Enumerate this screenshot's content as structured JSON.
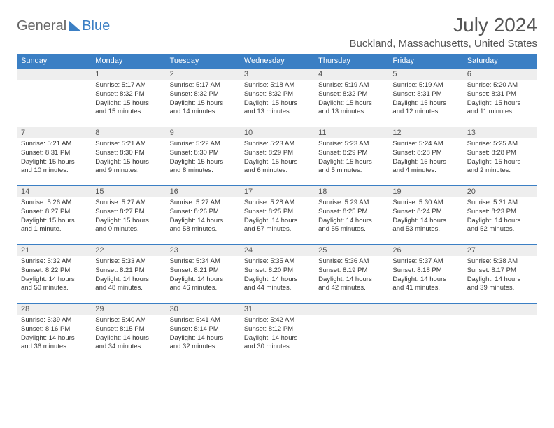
{
  "logo": {
    "general": "General",
    "blue": "Blue"
  },
  "title": "July 2024",
  "location": "Buckland, Massachusetts, United States",
  "colors": {
    "header_bg": "#3b7fc4",
    "header_fg": "#ffffff",
    "daynum_bg": "#eeeeee",
    "text": "#333333",
    "rule": "#3b7fc4"
  },
  "daysOfWeek": [
    "Sunday",
    "Monday",
    "Tuesday",
    "Wednesday",
    "Thursday",
    "Friday",
    "Saturday"
  ],
  "weeks": [
    [
      null,
      {
        "n": "1",
        "sr": "5:17 AM",
        "ss": "8:32 PM",
        "dl": "15 hours and 15 minutes."
      },
      {
        "n": "2",
        "sr": "5:17 AM",
        "ss": "8:32 PM",
        "dl": "15 hours and 14 minutes."
      },
      {
        "n": "3",
        "sr": "5:18 AM",
        "ss": "8:32 PM",
        "dl": "15 hours and 13 minutes."
      },
      {
        "n": "4",
        "sr": "5:19 AM",
        "ss": "8:32 PM",
        "dl": "15 hours and 13 minutes."
      },
      {
        "n": "5",
        "sr": "5:19 AM",
        "ss": "8:31 PM",
        "dl": "15 hours and 12 minutes."
      },
      {
        "n": "6",
        "sr": "5:20 AM",
        "ss": "8:31 PM",
        "dl": "15 hours and 11 minutes."
      }
    ],
    [
      {
        "n": "7",
        "sr": "5:21 AM",
        "ss": "8:31 PM",
        "dl": "15 hours and 10 minutes."
      },
      {
        "n": "8",
        "sr": "5:21 AM",
        "ss": "8:30 PM",
        "dl": "15 hours and 9 minutes."
      },
      {
        "n": "9",
        "sr": "5:22 AM",
        "ss": "8:30 PM",
        "dl": "15 hours and 8 minutes."
      },
      {
        "n": "10",
        "sr": "5:23 AM",
        "ss": "8:29 PM",
        "dl": "15 hours and 6 minutes."
      },
      {
        "n": "11",
        "sr": "5:23 AM",
        "ss": "8:29 PM",
        "dl": "15 hours and 5 minutes."
      },
      {
        "n": "12",
        "sr": "5:24 AM",
        "ss": "8:28 PM",
        "dl": "15 hours and 4 minutes."
      },
      {
        "n": "13",
        "sr": "5:25 AM",
        "ss": "8:28 PM",
        "dl": "15 hours and 2 minutes."
      }
    ],
    [
      {
        "n": "14",
        "sr": "5:26 AM",
        "ss": "8:27 PM",
        "dl": "15 hours and 1 minute."
      },
      {
        "n": "15",
        "sr": "5:27 AM",
        "ss": "8:27 PM",
        "dl": "15 hours and 0 minutes."
      },
      {
        "n": "16",
        "sr": "5:27 AM",
        "ss": "8:26 PM",
        "dl": "14 hours and 58 minutes."
      },
      {
        "n": "17",
        "sr": "5:28 AM",
        "ss": "8:25 PM",
        "dl": "14 hours and 57 minutes."
      },
      {
        "n": "18",
        "sr": "5:29 AM",
        "ss": "8:25 PM",
        "dl": "14 hours and 55 minutes."
      },
      {
        "n": "19",
        "sr": "5:30 AM",
        "ss": "8:24 PM",
        "dl": "14 hours and 53 minutes."
      },
      {
        "n": "20",
        "sr": "5:31 AM",
        "ss": "8:23 PM",
        "dl": "14 hours and 52 minutes."
      }
    ],
    [
      {
        "n": "21",
        "sr": "5:32 AM",
        "ss": "8:22 PM",
        "dl": "14 hours and 50 minutes."
      },
      {
        "n": "22",
        "sr": "5:33 AM",
        "ss": "8:21 PM",
        "dl": "14 hours and 48 minutes."
      },
      {
        "n": "23",
        "sr": "5:34 AM",
        "ss": "8:21 PM",
        "dl": "14 hours and 46 minutes."
      },
      {
        "n": "24",
        "sr": "5:35 AM",
        "ss": "8:20 PM",
        "dl": "14 hours and 44 minutes."
      },
      {
        "n": "25",
        "sr": "5:36 AM",
        "ss": "8:19 PM",
        "dl": "14 hours and 42 minutes."
      },
      {
        "n": "26",
        "sr": "5:37 AM",
        "ss": "8:18 PM",
        "dl": "14 hours and 41 minutes."
      },
      {
        "n": "27",
        "sr": "5:38 AM",
        "ss": "8:17 PM",
        "dl": "14 hours and 39 minutes."
      }
    ],
    [
      {
        "n": "28",
        "sr": "5:39 AM",
        "ss": "8:16 PM",
        "dl": "14 hours and 36 minutes."
      },
      {
        "n": "29",
        "sr": "5:40 AM",
        "ss": "8:15 PM",
        "dl": "14 hours and 34 minutes."
      },
      {
        "n": "30",
        "sr": "5:41 AM",
        "ss": "8:14 PM",
        "dl": "14 hours and 32 minutes."
      },
      {
        "n": "31",
        "sr": "5:42 AM",
        "ss": "8:12 PM",
        "dl": "14 hours and 30 minutes."
      },
      null,
      null,
      null
    ]
  ],
  "labels": {
    "sunrise": "Sunrise: ",
    "sunset": "Sunset: ",
    "daylight": "Daylight: "
  }
}
